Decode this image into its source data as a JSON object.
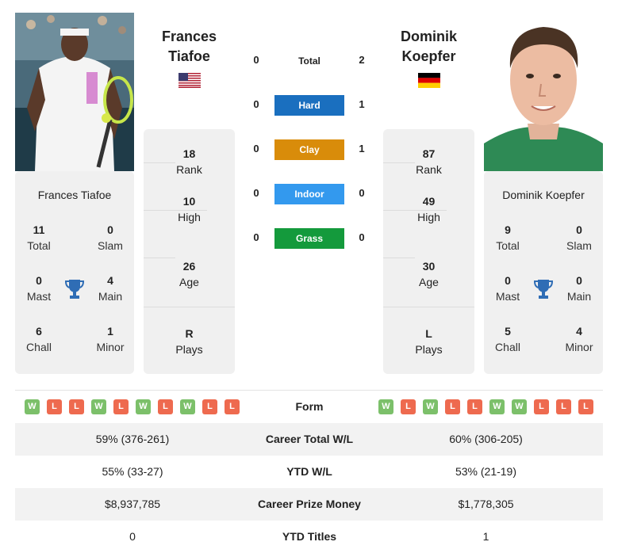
{
  "player1": {
    "name_line1": "Frances",
    "name_line2": "Tiafoe",
    "card_name": "Frances Tiafoe",
    "flag": "us-flag",
    "total": "11",
    "total_label": "Total",
    "slam": "0",
    "slam_label": "Slam",
    "mast": "0",
    "mast_label": "Mast",
    "main": "4",
    "main_label": "Main",
    "chall": "6",
    "chall_label": "Chall",
    "minor": "1",
    "minor_label": "Minor",
    "rank": "18",
    "rank_label": "Rank",
    "high": "10",
    "high_label": "High",
    "age": "26",
    "age_label": "Age",
    "plays": "R",
    "plays_label": "Plays",
    "form": [
      "W",
      "L",
      "L",
      "W",
      "L",
      "W",
      "L",
      "W",
      "L",
      "L"
    ]
  },
  "player2": {
    "name_line1": "Dominik",
    "name_line2": "Koepfer",
    "card_name": "Dominik Koepfer",
    "flag": "de-flag",
    "total": "9",
    "total_label": "Total",
    "slam": "0",
    "slam_label": "Slam",
    "mast": "0",
    "mast_label": "Mast",
    "main": "0",
    "main_label": "Main",
    "chall": "5",
    "chall_label": "Chall",
    "minor": "4",
    "minor_label": "Minor",
    "rank": "87",
    "rank_label": "Rank",
    "high": "49",
    "high_label": "High",
    "age": "30",
    "age_label": "Age",
    "plays": "L",
    "plays_label": "Plays",
    "form": [
      "W",
      "L",
      "W",
      "L",
      "L",
      "W",
      "W",
      "L",
      "L",
      "L"
    ]
  },
  "h2h": {
    "total": {
      "label": "Total",
      "p1": "0",
      "p2": "2"
    },
    "hard": {
      "label": "Hard",
      "p1": "0",
      "p2": "1",
      "color": "#1a6fbf"
    },
    "clay": {
      "label": "Clay",
      "p1": "0",
      "p2": "1",
      "color": "#d98c0a"
    },
    "indoor": {
      "label": "Indoor",
      "p1": "0",
      "p2": "0",
      "color": "#3399ee"
    },
    "grass": {
      "label": "Grass",
      "p1": "0",
      "p2": "0",
      "color": "#149a3c"
    }
  },
  "table": {
    "form_label": "Form",
    "rows": [
      {
        "label": "Career Total W/L",
        "p1": "59% (376-261)",
        "p2": "60% (306-205)"
      },
      {
        "label": "YTD W/L",
        "p1": "55% (33-27)",
        "p2": "53% (21-19)"
      },
      {
        "label": "Career Prize Money",
        "p1": "$8,937,785",
        "p2": "$1,778,305"
      },
      {
        "label": "YTD Titles",
        "p1": "0",
        "p2": "1"
      }
    ]
  },
  "colors": {
    "win": "#7cc06a",
    "loss": "#ee6a4f",
    "trophy": "#2f6db5"
  }
}
